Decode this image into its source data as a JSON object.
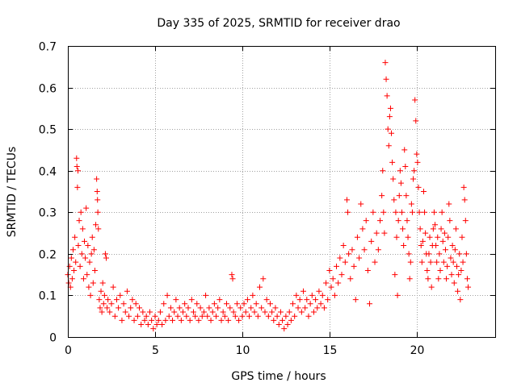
{
  "chart_data": {
    "type": "scatter",
    "title": "Day 335 of 2025, SRMTID for receiver drao",
    "xlabel": "GPS time / hours",
    "ylabel": "SRMTID / TECUs",
    "xlim": [
      0,
      24.5
    ],
    "ylim": [
      0,
      0.7
    ],
    "xticks": [
      0,
      5,
      10,
      15,
      20
    ],
    "xtick_labels": [
      "0",
      "5",
      "10",
      "15",
      "20"
    ],
    "yticks": [
      0,
      0.1,
      0.2,
      0.3,
      0.4,
      0.5,
      0.6,
      0.7
    ],
    "ytick_labels": [
      "0",
      "0.1",
      "0.2",
      "0.3",
      "0.4",
      "0.5",
      "0.6",
      "0.7"
    ],
    "grid": true,
    "marker": "+",
    "color": "#ff0000",
    "series": [
      {
        "name": "SRMTID",
        "points": [
          [
            0.0,
            0.15
          ],
          [
            0.05,
            0.13
          ],
          [
            0.1,
            0.17
          ],
          [
            0.15,
            0.12
          ],
          [
            0.2,
            0.19
          ],
          [
            0.25,
            0.14
          ],
          [
            0.3,
            0.21
          ],
          [
            0.35,
            0.16
          ],
          [
            0.4,
            0.24
          ],
          [
            0.45,
            0.18
          ],
          [
            0.5,
            0.43
          ],
          [
            0.52,
            0.41
          ],
          [
            0.55,
            0.36
          ],
          [
            0.58,
            0.4
          ],
          [
            0.6,
            0.22
          ],
          [
            0.65,
            0.28
          ],
          [
            0.7,
            0.17
          ],
          [
            0.75,
            0.3
          ],
          [
            0.8,
            0.2
          ],
          [
            0.85,
            0.26
          ],
          [
            0.9,
            0.14
          ],
          [
            0.95,
            0.23
          ],
          [
            1.0,
            0.19
          ],
          [
            1.05,
            0.31
          ],
          [
            1.1,
            0.15
          ],
          [
            1.15,
            0.22
          ],
          [
            1.2,
            0.12
          ],
          [
            1.25,
            0.18
          ],
          [
            1.3,
            0.1
          ],
          [
            1.35,
            0.2
          ],
          [
            1.4,
            0.24
          ],
          [
            1.45,
            0.13
          ],
          [
            1.5,
            0.21
          ],
          [
            1.55,
            0.16
          ],
          [
            1.6,
            0.27
          ],
          [
            1.65,
            0.38
          ],
          [
            1.68,
            0.35
          ],
          [
            1.7,
            0.33
          ],
          [
            1.72,
            0.3
          ],
          [
            1.75,
            0.26
          ],
          [
            1.8,
            0.09
          ],
          [
            1.85,
            0.07
          ],
          [
            1.9,
            0.11
          ],
          [
            1.95,
            0.06
          ],
          [
            2.0,
            0.13
          ],
          [
            2.05,
            0.08
          ],
          [
            2.1,
            0.1
          ],
          [
            2.15,
            0.2
          ],
          [
            2.2,
            0.19
          ],
          [
            2.25,
            0.07
          ],
          [
            2.3,
            0.09
          ],
          [
            2.4,
            0.06
          ],
          [
            2.5,
            0.08
          ],
          [
            2.6,
            0.12
          ],
          [
            2.7,
            0.05
          ],
          [
            2.8,
            0.09
          ],
          [
            2.9,
            0.07
          ],
          [
            3.0,
            0.1
          ],
          [
            3.1,
            0.04
          ],
          [
            3.2,
            0.08
          ],
          [
            3.3,
            0.06
          ],
          [
            3.4,
            0.11
          ],
          [
            3.5,
            0.05
          ],
          [
            3.6,
            0.07
          ],
          [
            3.7,
            0.09
          ],
          [
            3.8,
            0.04
          ],
          [
            3.9,
            0.08
          ],
          [
            4.0,
            0.05
          ],
          [
            4.1,
            0.07
          ],
          [
            4.2,
            0.03
          ],
          [
            4.3,
            0.06
          ],
          [
            4.4,
            0.04
          ],
          [
            4.5,
            0.05
          ],
          [
            4.6,
            0.03
          ],
          [
            4.7,
            0.06
          ],
          [
            4.8,
            0.04
          ],
          [
            4.9,
            0.02
          ],
          [
            5.0,
            0.05
          ],
          [
            5.1,
            0.03
          ],
          [
            5.2,
            0.04
          ],
          [
            5.3,
            0.06
          ],
          [
            5.4,
            0.03
          ],
          [
            5.5,
            0.08
          ],
          [
            5.6,
            0.04
          ],
          [
            5.7,
            0.1
          ],
          [
            5.8,
            0.05
          ],
          [
            5.9,
            0.07
          ],
          [
            6.0,
            0.04
          ],
          [
            6.1,
            0.06
          ],
          [
            6.2,
            0.09
          ],
          [
            6.3,
            0.05
          ],
          [
            6.4,
            0.07
          ],
          [
            6.5,
            0.04
          ],
          [
            6.6,
            0.06
          ],
          [
            6.7,
            0.08
          ],
          [
            6.8,
            0.05
          ],
          [
            6.9,
            0.07
          ],
          [
            7.0,
            0.04
          ],
          [
            7.1,
            0.09
          ],
          [
            7.2,
            0.06
          ],
          [
            7.3,
            0.05
          ],
          [
            7.4,
            0.08
          ],
          [
            7.5,
            0.04
          ],
          [
            7.6,
            0.07
          ],
          [
            7.7,
            0.05
          ],
          [
            7.8,
            0.06
          ],
          [
            7.9,
            0.1
          ],
          [
            8.0,
            0.05
          ],
          [
            8.1,
            0.07
          ],
          [
            8.2,
            0.04
          ],
          [
            8.3,
            0.06
          ],
          [
            8.4,
            0.08
          ],
          [
            8.5,
            0.05
          ],
          [
            8.6,
            0.07
          ],
          [
            8.7,
            0.09
          ],
          [
            8.8,
            0.04
          ],
          [
            8.9,
            0.06
          ],
          [
            9.0,
            0.05
          ],
          [
            9.1,
            0.08
          ],
          [
            9.2,
            0.04
          ],
          [
            9.3,
            0.07
          ],
          [
            9.4,
            0.15
          ],
          [
            9.45,
            0.14
          ],
          [
            9.5,
            0.06
          ],
          [
            9.6,
            0.05
          ],
          [
            9.7,
            0.08
          ],
          [
            9.8,
            0.04
          ],
          [
            9.9,
            0.07
          ],
          [
            10.0,
            0.05
          ],
          [
            10.1,
            0.08
          ],
          [
            10.2,
            0.06
          ],
          [
            10.3,
            0.09
          ],
          [
            10.4,
            0.05
          ],
          [
            10.5,
            0.07
          ],
          [
            10.6,
            0.1
          ],
          [
            10.7,
            0.06
          ],
          [
            10.8,
            0.08
          ],
          [
            10.9,
            0.05
          ],
          [
            11.0,
            0.12
          ],
          [
            11.1,
            0.07
          ],
          [
            11.2,
            0.14
          ],
          [
            11.3,
            0.06
          ],
          [
            11.4,
            0.09
          ],
          [
            11.5,
            0.05
          ],
          [
            11.6,
            0.08
          ],
          [
            11.7,
            0.06
          ],
          [
            11.8,
            0.04
          ],
          [
            11.9,
            0.07
          ],
          [
            12.0,
            0.05
          ],
          [
            12.1,
            0.03
          ],
          [
            12.2,
            0.06
          ],
          [
            12.3,
            0.04
          ],
          [
            12.4,
            0.02
          ],
          [
            12.5,
            0.05
          ],
          [
            12.6,
            0.03
          ],
          [
            12.7,
            0.06
          ],
          [
            12.8,
            0.04
          ],
          [
            12.9,
            0.08
          ],
          [
            13.0,
            0.05
          ],
          [
            13.1,
            0.1
          ],
          [
            13.2,
            0.07
          ],
          [
            13.3,
            0.09
          ],
          [
            13.4,
            0.06
          ],
          [
            13.5,
            0.11
          ],
          [
            13.6,
            0.07
          ],
          [
            13.7,
            0.09
          ],
          [
            13.8,
            0.05
          ],
          [
            13.9,
            0.08
          ],
          [
            14.0,
            0.1
          ],
          [
            14.1,
            0.06
          ],
          [
            14.2,
            0.09
          ],
          [
            14.3,
            0.07
          ],
          [
            14.4,
            0.11
          ],
          [
            14.5,
            0.08
          ],
          [
            14.6,
            0.1
          ],
          [
            14.7,
            0.07
          ],
          [
            14.8,
            0.13
          ],
          [
            14.9,
            0.09
          ],
          [
            15.0,
            0.16
          ],
          [
            15.1,
            0.12
          ],
          [
            15.2,
            0.14
          ],
          [
            15.3,
            0.1
          ],
          [
            15.4,
            0.17
          ],
          [
            15.5,
            0.13
          ],
          [
            15.6,
            0.19
          ],
          [
            15.7,
            0.15
          ],
          [
            15.8,
            0.22
          ],
          [
            15.9,
            0.18
          ],
          [
            16.0,
            0.33
          ],
          [
            16.05,
            0.3
          ],
          [
            16.1,
            0.2
          ],
          [
            16.2,
            0.14
          ],
          [
            16.3,
            0.21
          ],
          [
            16.4,
            0.17
          ],
          [
            16.5,
            0.09
          ],
          [
            16.6,
            0.24
          ],
          [
            16.7,
            0.19
          ],
          [
            16.8,
            0.32
          ],
          [
            16.9,
            0.26
          ],
          [
            17.0,
            0.21
          ],
          [
            17.1,
            0.28
          ],
          [
            17.2,
            0.16
          ],
          [
            17.3,
            0.08
          ],
          [
            17.4,
            0.23
          ],
          [
            17.5,
            0.3
          ],
          [
            17.6,
            0.18
          ],
          [
            17.7,
            0.25
          ],
          [
            17.8,
            0.21
          ],
          [
            17.9,
            0.28
          ],
          [
            18.0,
            0.34
          ],
          [
            18.05,
            0.4
          ],
          [
            18.1,
            0.3
          ],
          [
            18.15,
            0.25
          ],
          [
            18.2,
            0.66
          ],
          [
            18.25,
            0.62
          ],
          [
            18.3,
            0.58
          ],
          [
            18.35,
            0.5
          ],
          [
            18.4,
            0.46
          ],
          [
            18.45,
            0.53
          ],
          [
            18.5,
            0.55
          ],
          [
            18.55,
            0.49
          ],
          [
            18.6,
            0.42
          ],
          [
            18.65,
            0.38
          ],
          [
            18.7,
            0.33
          ],
          [
            18.75,
            0.15
          ],
          [
            18.8,
            0.3
          ],
          [
            18.85,
            0.24
          ],
          [
            18.9,
            0.1
          ],
          [
            18.95,
            0.28
          ],
          [
            19.0,
            0.34
          ],
          [
            19.05,
            0.4
          ],
          [
            19.1,
            0.37
          ],
          [
            19.15,
            0.3
          ],
          [
            19.2,
            0.26
          ],
          [
            19.25,
            0.22
          ],
          [
            19.3,
            0.45
          ],
          [
            19.35,
            0.41
          ],
          [
            19.4,
            0.34
          ],
          [
            19.45,
            0.28
          ],
          [
            19.5,
            0.24
          ],
          [
            19.55,
            0.2
          ],
          [
            19.6,
            0.14
          ],
          [
            19.65,
            0.18
          ],
          [
            19.7,
            0.32
          ],
          [
            19.75,
            0.3
          ],
          [
            19.8,
            0.38
          ],
          [
            19.85,
            0.4
          ],
          [
            19.9,
            0.57
          ],
          [
            19.95,
            0.52
          ],
          [
            20.0,
            0.44
          ],
          [
            20.05,
            0.42
          ],
          [
            20.1,
            0.36
          ],
          [
            20.15,
            0.3
          ],
          [
            20.2,
            0.26
          ],
          [
            20.25,
            0.22
          ],
          [
            20.3,
            0.18
          ],
          [
            20.35,
            0.23
          ],
          [
            20.4,
            0.35
          ],
          [
            20.45,
            0.3
          ],
          [
            20.5,
            0.25
          ],
          [
            20.55,
            0.2
          ],
          [
            20.6,
            0.16
          ],
          [
            20.65,
            0.14
          ],
          [
            20.7,
            0.2
          ],
          [
            20.75,
            0.24
          ],
          [
            20.8,
            0.18
          ],
          [
            20.85,
            0.12
          ],
          [
            20.9,
            0.22
          ],
          [
            20.95,
            0.26
          ],
          [
            21.0,
            0.3
          ],
          [
            21.05,
            0.27
          ],
          [
            21.1,
            0.22
          ],
          [
            21.15,
            0.18
          ],
          [
            21.2,
            0.24
          ],
          [
            21.25,
            0.14
          ],
          [
            21.3,
            0.2
          ],
          [
            21.35,
            0.16
          ],
          [
            21.4,
            0.26
          ],
          [
            21.45,
            0.3
          ],
          [
            21.5,
            0.23
          ],
          [
            21.55,
            0.18
          ],
          [
            21.6,
            0.25
          ],
          [
            21.65,
            0.21
          ],
          [
            21.7,
            0.14
          ],
          [
            21.75,
            0.17
          ],
          [
            21.8,
            0.24
          ],
          [
            21.85,
            0.32
          ],
          [
            21.9,
            0.28
          ],
          [
            21.95,
            0.19
          ],
          [
            22.0,
            0.15
          ],
          [
            22.05,
            0.22
          ],
          [
            22.1,
            0.18
          ],
          [
            22.15,
            0.13
          ],
          [
            22.2,
            0.21
          ],
          [
            22.25,
            0.26
          ],
          [
            22.3,
            0.17
          ],
          [
            22.35,
            0.11
          ],
          [
            22.4,
            0.15
          ],
          [
            22.45,
            0.2
          ],
          [
            22.5,
            0.09
          ],
          [
            22.55,
            0.16
          ],
          [
            22.6,
            0.24
          ],
          [
            22.65,
            0.18
          ],
          [
            22.7,
            0.36
          ],
          [
            22.75,
            0.33
          ],
          [
            22.8,
            0.28
          ],
          [
            22.85,
            0.2
          ],
          [
            22.9,
            0.14
          ],
          [
            22.95,
            0.12
          ]
        ]
      }
    ]
  }
}
